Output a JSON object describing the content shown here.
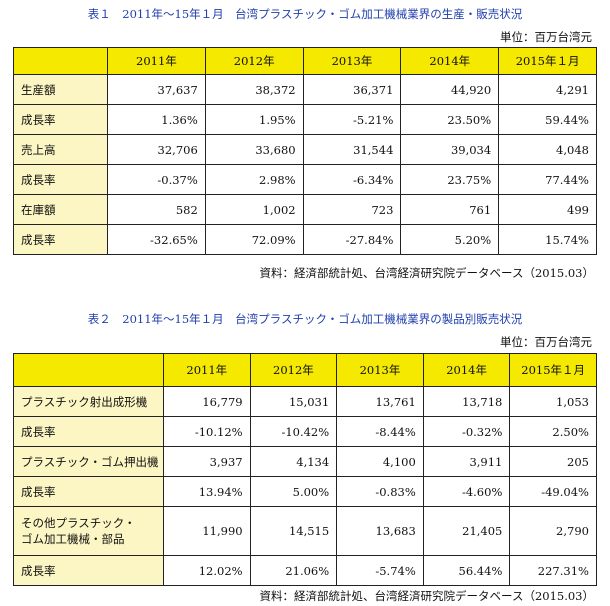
{
  "table1": {
    "caption": "表１　2011年〜15年１月　台湾プラスチック・ゴム加工機械業界の生産・販売状況",
    "unit": "単位：百万台湾元",
    "headers": [
      "2011年",
      "2012年",
      "2013年",
      "2014年",
      "2015年１月"
    ],
    "rows": [
      {
        "label": "生産額",
        "values": [
          "37,637",
          "38,372",
          "36,371",
          "44,920",
          "4,291"
        ]
      },
      {
        "label": "成長率",
        "values": [
          "1.36%",
          "1.95%",
          "-5.21%",
          "23.50%",
          "59.44%"
        ]
      },
      {
        "label": "売上高",
        "values": [
          "32,706",
          "33,680",
          "31,544",
          "39,034",
          "4,048"
        ]
      },
      {
        "label": "成長率",
        "values": [
          "-0.37%",
          "2.98%",
          "-6.34%",
          "23.75%",
          "77.44%"
        ]
      },
      {
        "label": "在庫額",
        "values": [
          "582",
          "1,002",
          "723",
          "761",
          "499"
        ]
      },
      {
        "label": "成長率",
        "values": [
          "-32.65%",
          "72.09%",
          "-27.84%",
          "5.20%",
          "15.74%"
        ]
      }
    ],
    "source": "資料：経済部統計処、台湾経済研究院データベース（2015.03）"
  },
  "table2": {
    "caption": "表２　2011年〜15年１月　台湾プラスチック・ゴム加工機械業界の製品別販売状況",
    "unit": "単位：百万台湾元",
    "headers": [
      "2011年",
      "2012年",
      "2013年",
      "2014年",
      "2015年１月"
    ],
    "rows": [
      {
        "label": "プラスチック射出成形機",
        "values": [
          "16,779",
          "15,031",
          "13,761",
          "13,718",
          "1,053"
        ]
      },
      {
        "label": "成長率",
        "values": [
          "-10.12%",
          "-10.42%",
          "-8.44%",
          "-0.32%",
          "2.50%"
        ]
      },
      {
        "label": "プラスチック・ゴム押出機",
        "values": [
          "3,937",
          "4,134",
          "4,100",
          "3,911",
          "205"
        ]
      },
      {
        "label": "成長率",
        "values": [
          "13.94%",
          "5.00%",
          "-0.83%",
          "-4.60%",
          "-49.04%"
        ]
      },
      {
        "label": "その他プラスチック・ゴム加工機械・部品",
        "label_line1": "その他プラスチック・",
        "label_line2": "ゴム加工機械・部品",
        "values": [
          "11,990",
          "14,515",
          "13,683",
          "21,405",
          "2,790"
        ]
      },
      {
        "label": "成長率",
        "values": [
          "12.02%",
          "21.06%",
          "-5.74%",
          "56.44%",
          "227.31%"
        ]
      }
    ],
    "source": "資料：経済部統計処、台湾経済研究院データベース（2015.03）"
  }
}
